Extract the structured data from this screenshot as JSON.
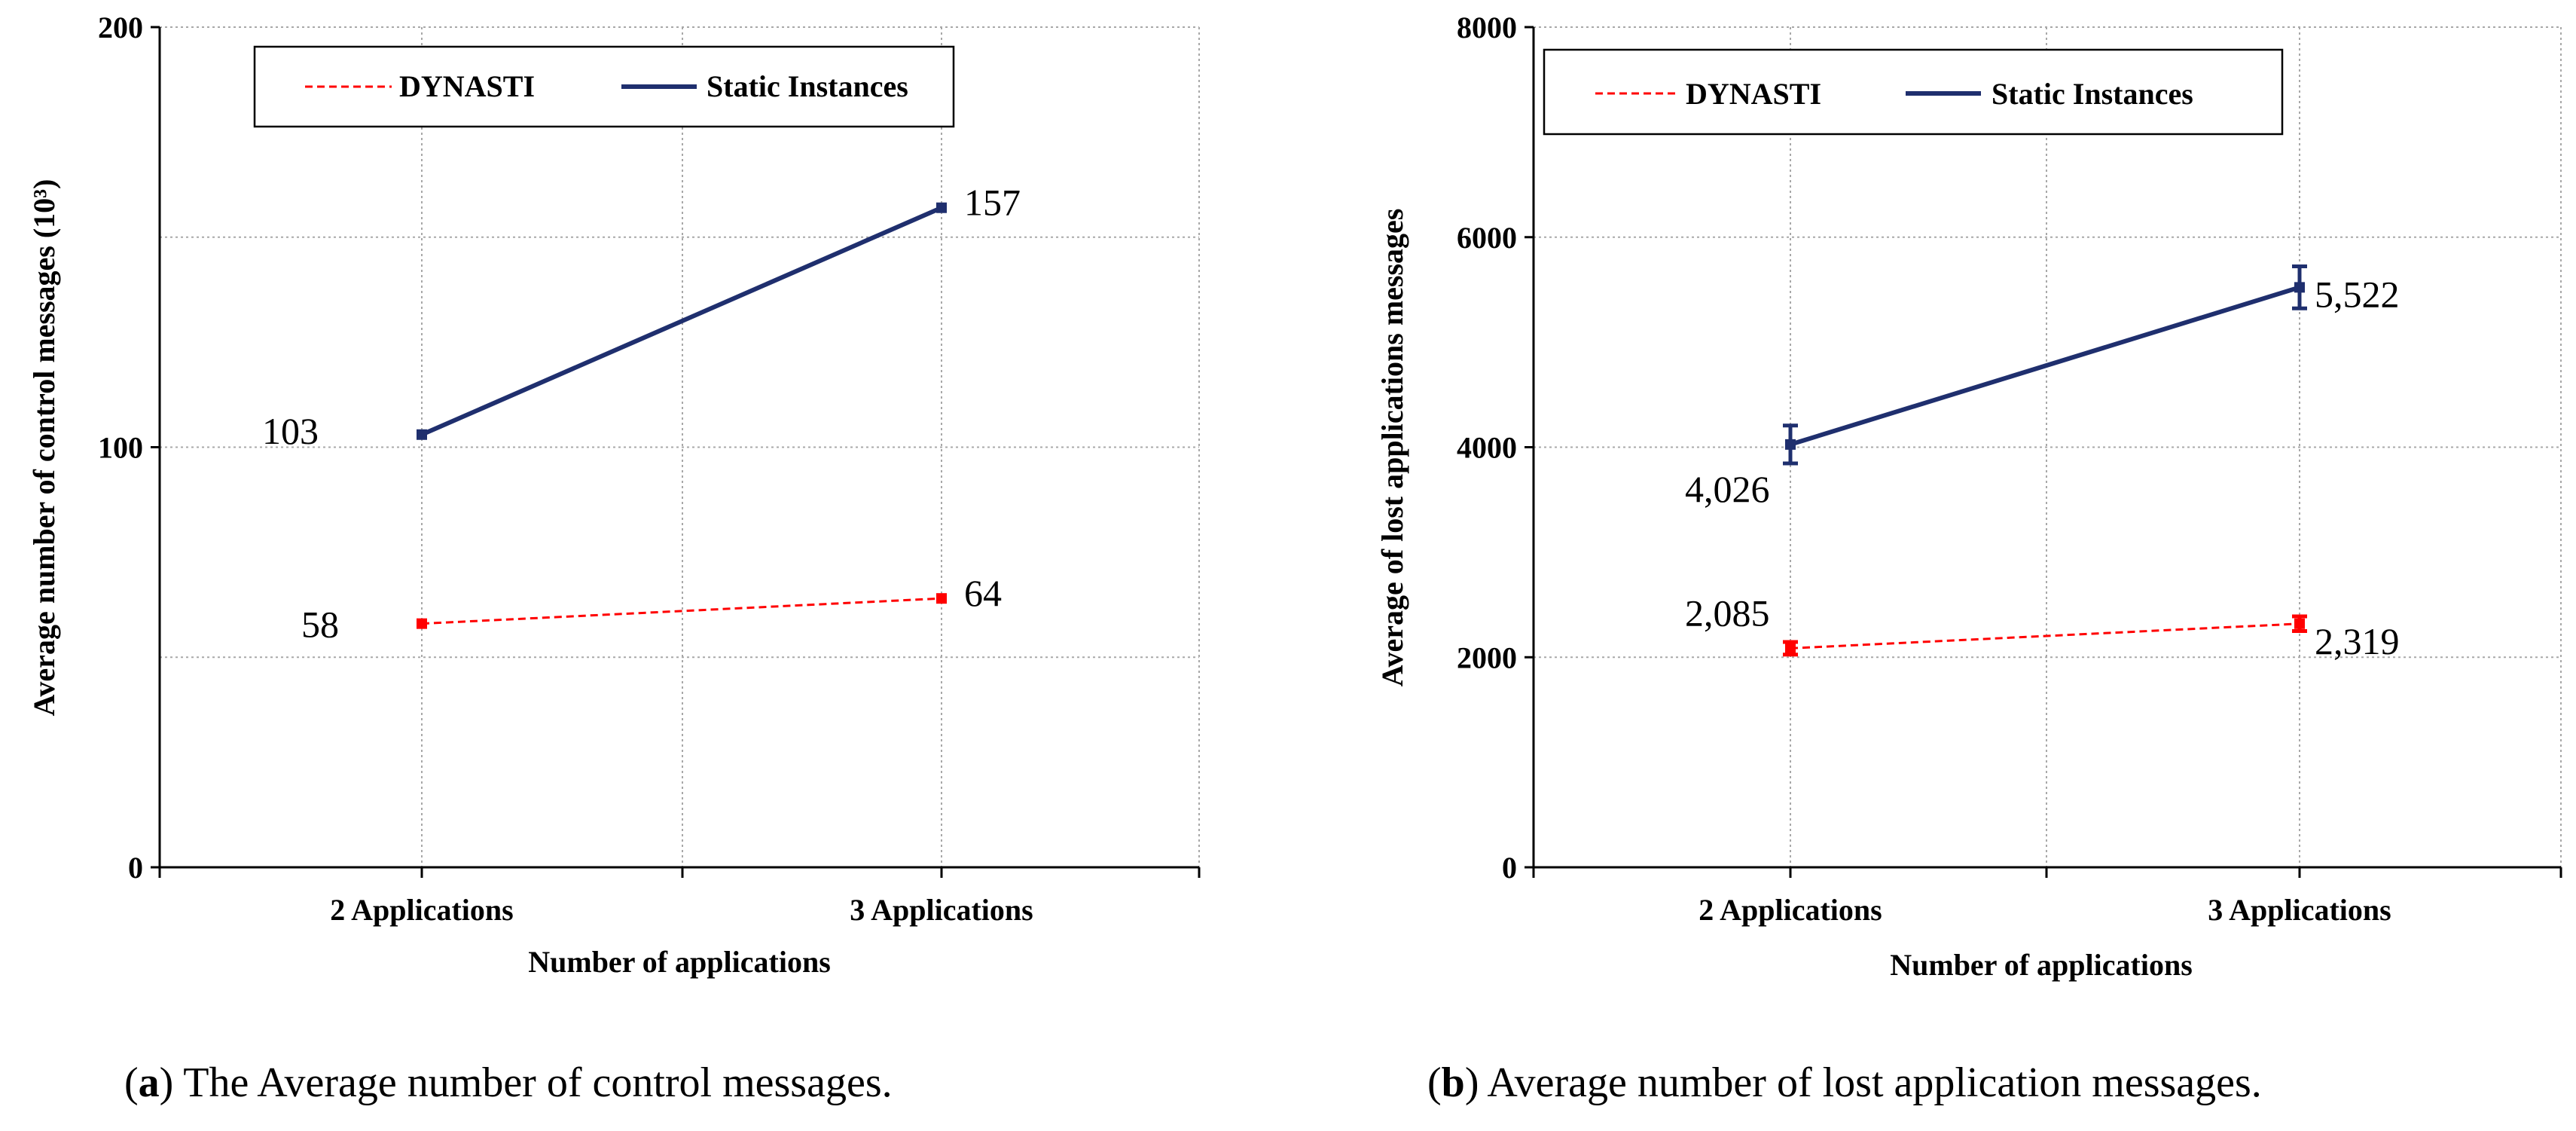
{
  "chart_data": [
    {
      "type": "line",
      "caption_letter": "a",
      "caption_text": "The Average number of control messages.",
      "categories": [
        "2 Applications",
        "3 Applications"
      ],
      "xlabel": "Number of applications",
      "ylabel": "Average number of control messages (10³)",
      "ylim": [
        0,
        200
      ],
      "yticks": [
        "0",
        "100",
        "200"
      ],
      "legend": [
        "DYNASTI",
        "Static Instances"
      ],
      "series": [
        {
          "name": "DYNASTI",
          "color": "#ff0000",
          "dash": true,
          "values": [
            58,
            64
          ],
          "labels": [
            "58",
            "64"
          ],
          "err": [
            0,
            0
          ]
        },
        {
          "name": "Static Instances",
          "color": "#1f2f6e",
          "dash": false,
          "values": [
            103,
            157
          ],
          "labels": [
            "103",
            "157"
          ],
          "err": [
            0,
            0
          ]
        }
      ]
    },
    {
      "type": "line",
      "caption_letter": "b",
      "caption_text": "Average number of lost application messages.",
      "categories": [
        "2 Applications",
        "3 Applications"
      ],
      "xlabel": "Number of applications",
      "ylabel": "Average of lost applications messages",
      "ylim": [
        0,
        8000
      ],
      "yticks": [
        "0",
        "2000",
        "4000",
        "6000",
        "8000"
      ],
      "legend": [
        "DYNASTI",
        "Static Instances"
      ],
      "series": [
        {
          "name": "DYNASTI",
          "color": "#ff0000",
          "dash": true,
          "values": [
            2085,
            2319
          ],
          "labels": [
            "2,085",
            "2,319"
          ],
          "err": [
            60,
            70
          ]
        },
        {
          "name": "Static Instances",
          "color": "#1f2f6e",
          "dash": false,
          "values": [
            4026,
            5522
          ],
          "labels": [
            "4,026",
            "5,522"
          ],
          "err": [
            180,
            200
          ]
        }
      ]
    }
  ]
}
